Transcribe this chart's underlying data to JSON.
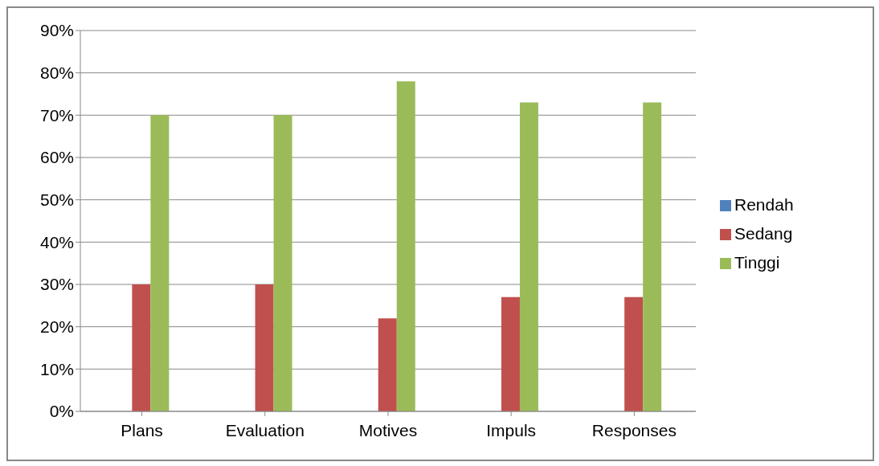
{
  "chart_data": {
    "type": "bar",
    "categories": [
      "Plans",
      "Evaluation",
      "Motives",
      "Impuls",
      "Responses"
    ],
    "series": [
      {
        "name": "Rendah",
        "color": "#4f81bd",
        "values": [
          0,
          0,
          0,
          0,
          0
        ]
      },
      {
        "name": "Sedang",
        "color": "#c0504d",
        "values": [
          30,
          30,
          22,
          27,
          27
        ]
      },
      {
        "name": "Tinggi",
        "color": "#9bbb59",
        "values": [
          70,
          70,
          78,
          73,
          73
        ]
      }
    ],
    "ylim": [
      0,
      90
    ],
    "yticks": [
      {
        "value": 0,
        "label": "0%"
      },
      {
        "value": 10,
        "label": "10%"
      },
      {
        "value": 20,
        "label": "20%"
      },
      {
        "value": 30,
        "label": "30%"
      },
      {
        "value": 40,
        "label": "40%"
      },
      {
        "value": 50,
        "label": "50%"
      },
      {
        "value": 60,
        "label": "60%"
      },
      {
        "value": 70,
        "label": "70%"
      },
      {
        "value": 80,
        "label": "80%"
      },
      {
        "value": 90,
        "label": "90%"
      }
    ],
    "grid": "y",
    "legend": "right"
  }
}
